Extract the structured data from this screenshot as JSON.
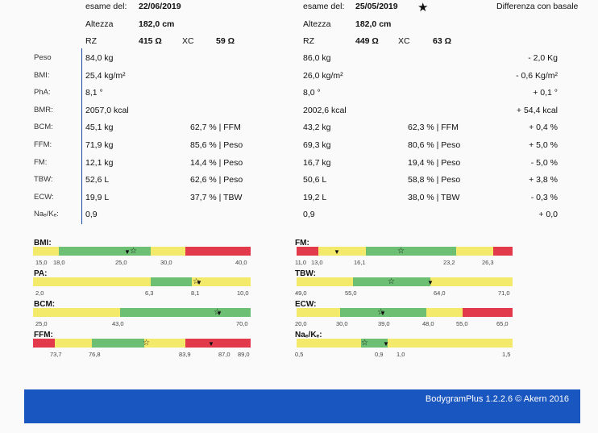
{
  "header": {
    "exam1_label": "esame del:",
    "exam1_date": "22/06/2019",
    "exam2_label": "esame del:",
    "exam2_date": "25/05/2019",
    "diff_label": "Differenza con basale",
    "height_label": "Altezza",
    "height1": "182,0 cm",
    "height2": "182,0 cm",
    "rz_label": "RZ",
    "xc_label": "XC",
    "rz1": "415 Ω",
    "xc1": "59 Ω",
    "rz2": "449 Ω",
    "xc2": "63 Ω"
  },
  "rows": [
    {
      "label": "Peso",
      "v1": "84,0 kg",
      "p1": "",
      "v2": "86,0 kg",
      "p2": "",
      "diff": "- 2,0 Kg"
    },
    {
      "label": "BMI:",
      "v1": "25,4 kg/m²",
      "p1": "",
      "v2": "26,0 kg/m²",
      "p2": "",
      "diff": "- 0,6 Kg/m²"
    },
    {
      "label": "PhA:",
      "v1": "8,1 °",
      "p1": "",
      "v2": "8,0 °",
      "p2": "",
      "diff": "+ 0,1 °"
    },
    {
      "label": "BMR:",
      "v1": "2057,0 kcal",
      "p1": "",
      "v2": "2002,6 kcal",
      "p2": "",
      "diff": "+ 54,4 kcal"
    },
    {
      "label": "BCM:",
      "v1": "45,1 kg",
      "p1": "62,7 % | FFM",
      "v2": "43,2 kg",
      "p2": "62,3 % | FFM",
      "diff": "+ 0,4 %"
    },
    {
      "label": "FFM:",
      "v1": "71,9 kg",
      "p1": "85,6 % | Peso",
      "v2": "69,3 kg",
      "p2": "80,6 % | Peso",
      "diff": "+ 5,0 %"
    },
    {
      "label": "FM:",
      "v1": "12,1 kg",
      "p1": "14,4 % | Peso",
      "v2": "16,7 kg",
      "p2": "19,4 % | Peso",
      "diff": "- 5,0 %"
    },
    {
      "label": "TBW:",
      "v1": "52,6 L",
      "p1": "62,6 % | Peso",
      "v2": "50,6 L",
      "p2": "58,8 % | Peso",
      "diff": "+ 3,8 %"
    },
    {
      "label": "ECW:",
      "v1": "19,9 L",
      "p1": "37,7 % | TBW",
      "v2": "19,2 L",
      "p2": "38,0 % | TBW",
      "diff": "- 0,3 %"
    },
    {
      "label": "Naₑ/Kₑ:",
      "v1": "0,9",
      "p1": "",
      "v2": "0,9",
      "p2": "",
      "diff": "+ 0,0"
    }
  ],
  "gauges": {
    "bmi": {
      "title": "BMI:",
      "ticks": [
        "15,0",
        "18,0",
        "25,0",
        "30,0",
        "40,0"
      ]
    },
    "pa": {
      "title": "PA:",
      "ticks": [
        "2,0",
        "6,3",
        "8,1",
        "10,0"
      ]
    },
    "bcm": {
      "title": "BCM:",
      "ticks": [
        "25,0",
        "43,0",
        "70,0"
      ]
    },
    "ffm": {
      "title": "FFM:",
      "ticks": [
        "73,7",
        "76,8",
        "83,9",
        "87,0",
        "89,0"
      ]
    },
    "fm": {
      "title": "FM:",
      "ticks": [
        "11,0",
        "13,0",
        "16,1",
        "23,2",
        "26,3"
      ]
    },
    "tbw": {
      "title": "TBW:",
      "ticks": [
        "49,0",
        "55,0",
        "64,0",
        "71,0"
      ]
    },
    "ecw": {
      "title": "ECW:",
      "ticks": [
        "20,0",
        "30,0",
        "39,0",
        "48,0",
        "55,0",
        "65,0"
      ]
    },
    "nak": {
      "title": "Naₑ/Kₑ:",
      "ticks": [
        "0,5",
        "0,9",
        "1,0",
        "1,5"
      ]
    }
  },
  "colors": {
    "green": "#6cbf73",
    "yellow": "#f3ea6c",
    "red": "#e23a4a",
    "footer_blue": "#1a56c0",
    "line_blue": "#1b47a8"
  },
  "footer": {
    "text": "BodygramPlus 1.2.2.6 © Akern 2016"
  },
  "icons": {
    "star": "star-icon",
    "triangle": "triangle-down-icon"
  }
}
